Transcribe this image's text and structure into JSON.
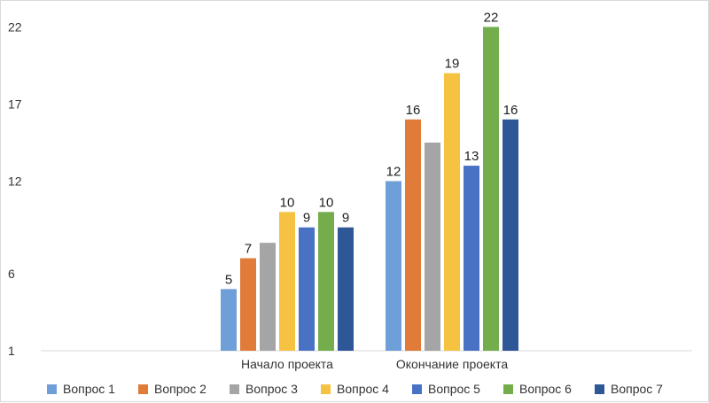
{
  "chart_data": {
    "type": "bar",
    "categories": [
      "Начало проекта",
      "Окончание проекта"
    ],
    "y_ticks": [
      "1",
      "6",
      "12",
      "17",
      "22"
    ],
    "ylim": [
      1,
      23
    ],
    "grid": false,
    "legend_position": "bottom",
    "series": [
      {
        "name": "Вопрос 1",
        "color": "#6f9fd8",
        "values": [
          5,
          12
        ],
        "labels": [
          "5",
          "12"
        ]
      },
      {
        "name": "Вопрос 2",
        "color": "#e07b39",
        "values": [
          7,
          16
        ],
        "labels": [
          "7",
          "16"
        ]
      },
      {
        "name": "Вопрос 3",
        "color": "#a5a5a5",
        "values": [
          8,
          14.5
        ],
        "labels": [
          "",
          ""
        ]
      },
      {
        "name": "Вопрос 4",
        "color": "#f5c242",
        "values": [
          10,
          19
        ],
        "labels": [
          "10",
          "19"
        ]
      },
      {
        "name": "Вопрос 5",
        "color": "#4a72c4",
        "values": [
          9,
          13
        ],
        "labels": [
          "9",
          "13"
        ]
      },
      {
        "name": "Вопрос 6",
        "color": "#74ad4c",
        "values": [
          10,
          22
        ],
        "labels": [
          "10",
          "22"
        ]
      },
      {
        "name": "Вопрос 7",
        "color": "#2e5797",
        "values": [
          9,
          16
        ],
        "labels": [
          "9",
          "16"
        ]
      }
    ]
  }
}
